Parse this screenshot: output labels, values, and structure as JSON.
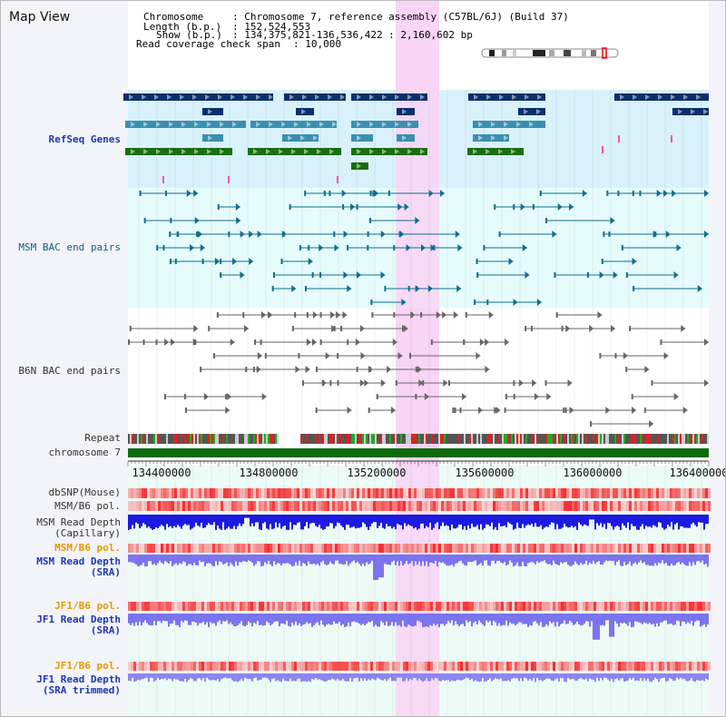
{
  "view": {
    "title": "Map View"
  },
  "info": {
    "chromosome_key": "Chromosome",
    "chromosome_value": ": Chromosome 7, reference assembly (C57BL/6J) (Build 37)",
    "length_key": "Length (b.p.)",
    "length_value": ": 152,524,553",
    "show_key": "Show (b.p.)",
    "show_value": ": 134,375,821-136,536,422 : 2,160,602 bp",
    "coverage_key": "Read coverage check span",
    "coverage_value": ": 10,000"
  },
  "tracks": {
    "refseq": "RefSeq Genes",
    "msm_bac": "MSM BAC end pairs",
    "b6n_bac": "B6N BAC end pairs",
    "repeat": "Repeat",
    "chromosome": "chromosome 7",
    "dbsnp": "dbSNP(Mouse)",
    "msm_b6_pol_1": "MSM/B6 pol.",
    "msm_depth_cap": "MSM Read Depth\n(Capillary)",
    "msm_b6_pol_2": "MSM/B6 pol.",
    "msm_depth_sra": "MSM Read Depth\n(SRA)",
    "jf1_b6_pol_1": "JF1/B6 pol.",
    "jf1_depth_sra": "JF1 Read Depth\n(SRA)",
    "jf1_b6_pol_2": "JF1/B6 pol.",
    "jf1_depth_trim": "JF1 Read Depth\n(SRA trimmed)"
  },
  "axis": {
    "ticks": [
      "134400000",
      "134800000",
      "135200000",
      "135600000",
      "136000000",
      "136400000"
    ]
  },
  "colors": {
    "refseq_bg": "#d9f1fa",
    "bac_bg": "#e6fbfb",
    "highlight": "#f8d3f4",
    "gene_navy": "#0a2f6a",
    "gene_blue": "#3a8fb0",
    "gene_green": "#1a6e12",
    "msm_line": "#0f6f8f",
    "b6n_line": "#666666",
    "chrom_green": "#0d6b0d",
    "depth_blue": "#1c1ae0",
    "sra_blue": "#7a74ee"
  }
}
